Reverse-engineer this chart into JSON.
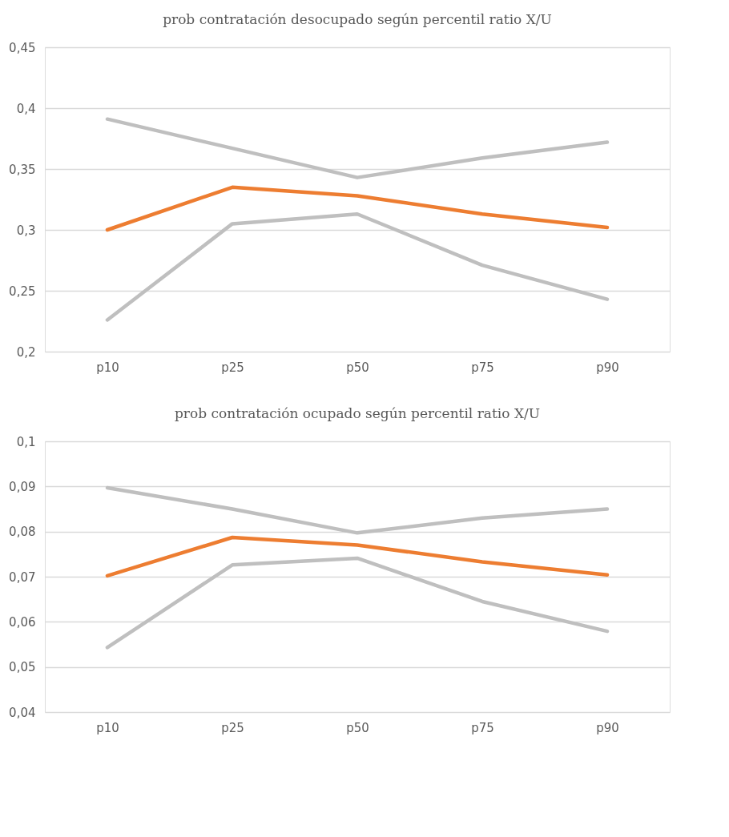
{
  "chart_data": [
    {
      "type": "line",
      "title": "prob contratación desocupado según percentil ratio X/U",
      "categories": [
        "p10",
        "p25",
        "p50",
        "p75",
        "p90"
      ],
      "series": [
        {
          "color": "#bfbfbf",
          "values": [
            0.391,
            0.367,
            0.343,
            0.359,
            0.372
          ]
        },
        {
          "color": "#bfbfbf",
          "values": [
            0.226,
            0.305,
            0.313,
            0.271,
            0.243
          ]
        },
        {
          "color": "#ed7d31",
          "values": [
            0.3,
            0.335,
            0.328,
            0.313,
            0.302
          ]
        }
      ],
      "ylim": [
        0.2,
        0.45
      ],
      "yticks": [
        {
          "value": 0.2,
          "label": "0,2"
        },
        {
          "value": 0.25,
          "label": "0,25"
        },
        {
          "value": 0.3,
          "label": "0,3"
        },
        {
          "value": 0.35,
          "label": "0,35"
        },
        {
          "value": 0.4,
          "label": "0,4"
        },
        {
          "value": 0.45,
          "label": "0,45"
        }
      ],
      "grid": "y",
      "legend": false,
      "marker": "none",
      "line_style": "solid"
    },
    {
      "type": "line",
      "title": "prob contratación ocupado según percentil ratio X/U",
      "categories": [
        "p10",
        "p25",
        "p50",
        "p75",
        "p90"
      ],
      "series": [
        {
          "color": "#bfbfbf",
          "values": [
            0.0897,
            0.085,
            0.0797,
            0.083,
            0.085
          ]
        },
        {
          "color": "#bfbfbf",
          "values": [
            0.0543,
            0.0726,
            0.0741,
            0.0645,
            0.0579
          ]
        },
        {
          "color": "#ed7d31",
          "values": [
            0.0702,
            0.0787,
            0.077,
            0.0733,
            0.0704
          ]
        }
      ],
      "ylim": [
        0.04,
        0.1
      ],
      "yticks": [
        {
          "value": 0.04,
          "label": "0,04"
        },
        {
          "value": 0.05,
          "label": "0,05"
        },
        {
          "value": 0.06,
          "label": "0,06"
        },
        {
          "value": 0.07,
          "label": "0,07"
        },
        {
          "value": 0.08,
          "label": "0,08"
        },
        {
          "value": 0.09,
          "label": "0,09"
        },
        {
          "value": 0.1,
          "label": "0,1"
        }
      ],
      "grid": "y",
      "legend": false,
      "marker": "none",
      "line_style": "solid"
    }
  ]
}
